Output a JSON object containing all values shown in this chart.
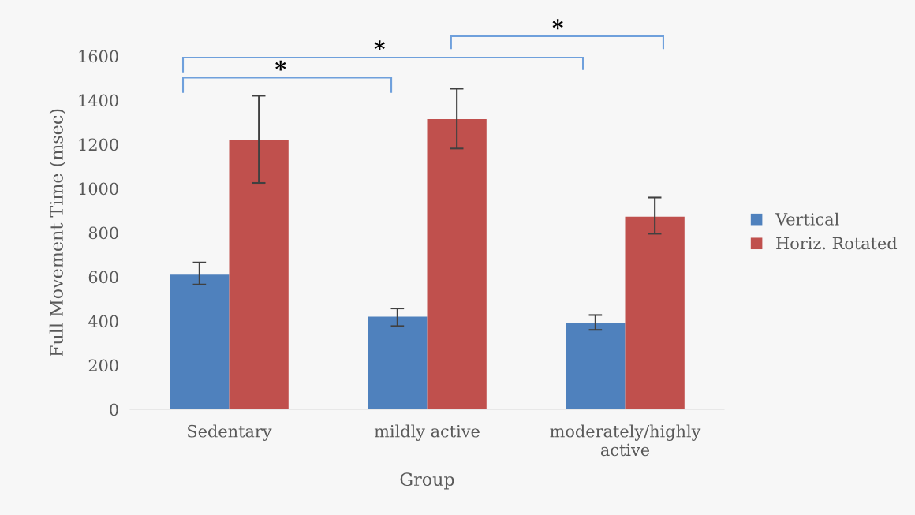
{
  "chart_data": {
    "type": "bar",
    "categories": [
      "Sedentary",
      "mildly active",
      "moderately/highly\nactive"
    ],
    "xlabel": "Group",
    "ylabel": "Full Movement Time (msec)",
    "ylim": [
      0,
      1600
    ],
    "yticks": [
      0,
      200,
      400,
      600,
      800,
      1000,
      1200,
      1400,
      1600
    ],
    "series": [
      {
        "name": "Vertical",
        "color": "#4f81bd",
        "values": [
          610,
          420,
          390
        ],
        "errors": [
          [
            565,
            665
          ],
          [
            377,
            457
          ],
          [
            360,
            427
          ]
        ]
      },
      {
        "name": "Horiz. Rotated",
        "color": "#c0504d",
        "values": [
          1220,
          1314,
          872
        ],
        "errors": [
          [
            1025,
            1420
          ],
          [
            1181,
            1452
          ],
          [
            795,
            959
          ]
        ]
      }
    ],
    "annotations": [
      "*",
      "*",
      "*"
    ],
    "legend": "right",
    "grid": false
  }
}
